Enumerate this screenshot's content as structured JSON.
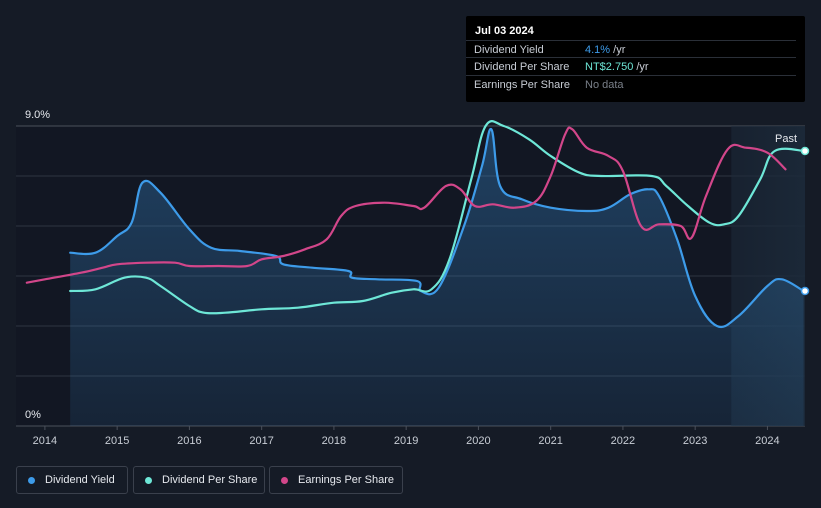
{
  "tooltip": {
    "date": "Jul 03 2024",
    "rows": [
      {
        "label": "Dividend Yield",
        "value": "4.1%",
        "unit": " /yr"
      },
      {
        "label": "Dividend Per Share",
        "value": "NT$2.750",
        "unit": " /yr"
      },
      {
        "label": "Earnings Per Share",
        "value": "No data",
        "unit": ""
      }
    ]
  },
  "legend": {
    "dividend_yield": "Dividend Yield",
    "dividend_per_share": "Dividend Per Share",
    "earnings_per_share": "Earnings Per Share"
  },
  "colors": {
    "yield": "#3d9be9",
    "dps": "#6ee7d7",
    "eps": "#d2468a",
    "background": "#151b26",
    "grid": "#3a404c"
  },
  "chart_data": {
    "type": "line",
    "title": "",
    "xlabel": "",
    "ylabel": "",
    "y_top_label": "9.0%",
    "y_bottom_label": "0%",
    "past_label": "Past",
    "xlim": [
      2013.6,
      2024.52
    ],
    "ylim": [
      0,
      9
    ],
    "x_ticks": [
      2014,
      2015,
      2016,
      2017,
      2018,
      2019,
      2020,
      2021,
      2022,
      2023,
      2024
    ],
    "x_tick_labels": [
      "2014",
      "2015",
      "2016",
      "2017",
      "2018",
      "2019",
      "2020",
      "2021",
      "2022",
      "2023",
      "2024"
    ],
    "past_region_start": 2023.5,
    "series": [
      {
        "name": "Dividend Yield",
        "unit": "%",
        "points": [
          [
            2014.35,
            5.2
          ],
          [
            2014.7,
            5.2
          ],
          [
            2015.0,
            5.7
          ],
          [
            2015.2,
            6.1
          ],
          [
            2015.35,
            7.3
          ],
          [
            2015.6,
            7.0
          ],
          [
            2016.0,
            5.9
          ],
          [
            2016.3,
            5.35
          ],
          [
            2016.7,
            5.25
          ],
          [
            2017.2,
            5.1
          ],
          [
            2017.3,
            4.85
          ],
          [
            2017.7,
            4.75
          ],
          [
            2018.2,
            4.65
          ],
          [
            2018.25,
            4.45
          ],
          [
            2018.6,
            4.4
          ],
          [
            2019.15,
            4.35
          ],
          [
            2019.2,
            4.05
          ],
          [
            2019.45,
            4.15
          ],
          [
            2019.8,
            6.0
          ],
          [
            2020.05,
            7.8
          ],
          [
            2020.18,
            8.9
          ],
          [
            2020.3,
            7.2
          ],
          [
            2020.6,
            6.8
          ],
          [
            2021.0,
            6.55
          ],
          [
            2021.5,
            6.45
          ],
          [
            2021.8,
            6.55
          ],
          [
            2022.1,
            6.95
          ],
          [
            2022.35,
            7.1
          ],
          [
            2022.5,
            6.9
          ],
          [
            2022.75,
            5.6
          ],
          [
            2023.0,
            3.9
          ],
          [
            2023.3,
            3.0
          ],
          [
            2023.6,
            3.3
          ],
          [
            2024.0,
            4.2
          ],
          [
            2024.2,
            4.4
          ],
          [
            2024.5,
            4.05
          ]
        ]
      },
      {
        "name": "Dividend Per Share",
        "unit": "NT$",
        "points": [
          [
            2014.35,
            4.05
          ],
          [
            2014.7,
            4.1
          ],
          [
            2015.1,
            4.45
          ],
          [
            2015.4,
            4.45
          ],
          [
            2015.6,
            4.2
          ],
          [
            2016.0,
            3.6
          ],
          [
            2016.2,
            3.4
          ],
          [
            2016.5,
            3.4
          ],
          [
            2017.0,
            3.5
          ],
          [
            2017.5,
            3.55
          ],
          [
            2018.0,
            3.7
          ],
          [
            2018.4,
            3.75
          ],
          [
            2018.8,
            4.0
          ],
          [
            2019.1,
            4.1
          ],
          [
            2019.35,
            4.1
          ],
          [
            2019.6,
            5.0
          ],
          [
            2019.9,
            7.4
          ],
          [
            2020.1,
            9.0
          ],
          [
            2020.35,
            9.0
          ],
          [
            2020.7,
            8.6
          ],
          [
            2021.0,
            8.1
          ],
          [
            2021.4,
            7.6
          ],
          [
            2021.7,
            7.5
          ],
          [
            2022.4,
            7.5
          ],
          [
            2022.6,
            7.2
          ],
          [
            2022.9,
            6.6
          ],
          [
            2023.2,
            6.1
          ],
          [
            2023.4,
            6.05
          ],
          [
            2023.6,
            6.3
          ],
          [
            2023.9,
            7.4
          ],
          [
            2024.1,
            8.25
          ],
          [
            2024.52,
            8.25
          ]
        ]
      },
      {
        "name": "Earnings Per Share",
        "unit": "NT$",
        "points": [
          [
            2013.75,
            4.3
          ],
          [
            2014.0,
            4.4
          ],
          [
            2014.5,
            4.6
          ],
          [
            2014.8,
            4.75
          ],
          [
            2015.0,
            4.85
          ],
          [
            2015.4,
            4.9
          ],
          [
            2015.8,
            4.9
          ],
          [
            2016.0,
            4.8
          ],
          [
            2016.4,
            4.8
          ],
          [
            2016.8,
            4.8
          ],
          [
            2017.0,
            5.0
          ],
          [
            2017.3,
            5.1
          ],
          [
            2017.6,
            5.3
          ],
          [
            2017.9,
            5.6
          ],
          [
            2018.1,
            6.3
          ],
          [
            2018.3,
            6.6
          ],
          [
            2018.7,
            6.7
          ],
          [
            2019.1,
            6.6
          ],
          [
            2019.25,
            6.55
          ],
          [
            2019.55,
            7.2
          ],
          [
            2019.75,
            7.1
          ],
          [
            2019.95,
            6.6
          ],
          [
            2020.2,
            6.65
          ],
          [
            2020.5,
            6.55
          ],
          [
            2020.8,
            6.75
          ],
          [
            2021.0,
            7.5
          ],
          [
            2021.2,
            8.75
          ],
          [
            2021.3,
            8.9
          ],
          [
            2021.5,
            8.35
          ],
          [
            2021.8,
            8.1
          ],
          [
            2022.0,
            7.65
          ],
          [
            2022.25,
            6.0
          ],
          [
            2022.5,
            6.05
          ],
          [
            2022.8,
            6.0
          ],
          [
            2022.95,
            5.65
          ],
          [
            2023.15,
            6.9
          ],
          [
            2023.45,
            8.3
          ],
          [
            2023.7,
            8.35
          ],
          [
            2024.0,
            8.2
          ],
          [
            2024.25,
            7.7
          ]
        ]
      }
    ],
    "end_markers": [
      {
        "series": "Dividend Per Share",
        "x": 2024.52,
        "y": 8.25
      },
      {
        "series": "Dividend Yield",
        "x": 2024.52,
        "y": 4.05
      }
    ]
  }
}
